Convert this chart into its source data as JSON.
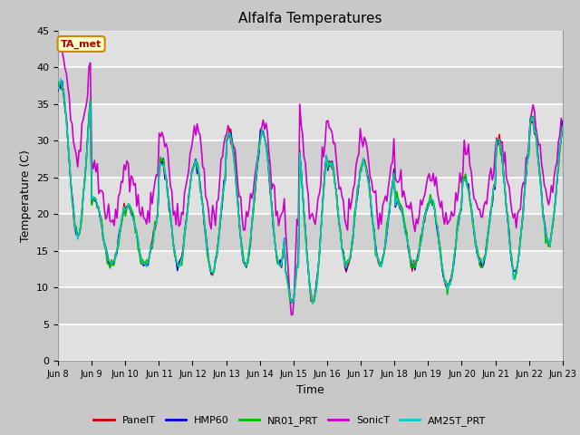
{
  "title": "Alfalfa Temperatures",
  "xlabel": "Time",
  "ylabel": "Temperature (C)",
  "ylim": [
    0,
    45
  ],
  "yticks": [
    0,
    5,
    10,
    15,
    20,
    25,
    30,
    35,
    40,
    45
  ],
  "xlim_days": [
    8,
    23
  ],
  "xtick_labels": [
    "Jun 8",
    "Jun 9",
    "Jun 10",
    "Jun 11",
    "Jun 12",
    "Jun 13",
    "Jun 14",
    "Jun 15",
    "Jun 16",
    "Jun 17",
    "Jun 18",
    "Jun 19",
    "Jun 20",
    "Jun 21",
    "Jun 22",
    "Jun 23"
  ],
  "series_colors": {
    "PanelT": "#cc0000",
    "HMP60": "#0000dd",
    "NR01_PRT": "#00bb00",
    "SonicT": "#cc00cc",
    "AM25T_PRT": "#00cccc"
  },
  "series_lw": {
    "PanelT": 1.0,
    "HMP60": 1.0,
    "NR01_PRT": 1.2,
    "SonicT": 1.2,
    "AM25T_PRT": 1.0
  },
  "annotation_text": "TA_met",
  "annotation_color": "#aa0000",
  "annotation_bg": "#ffffcc",
  "annotation_border": "#cc8800",
  "fig_bg": "#c8c8c8",
  "plot_bg": "#e8e8e8",
  "grid_color": "#ffffff",
  "band_colors": [
    "#e0e0e0",
    "#d0d0d0"
  ]
}
